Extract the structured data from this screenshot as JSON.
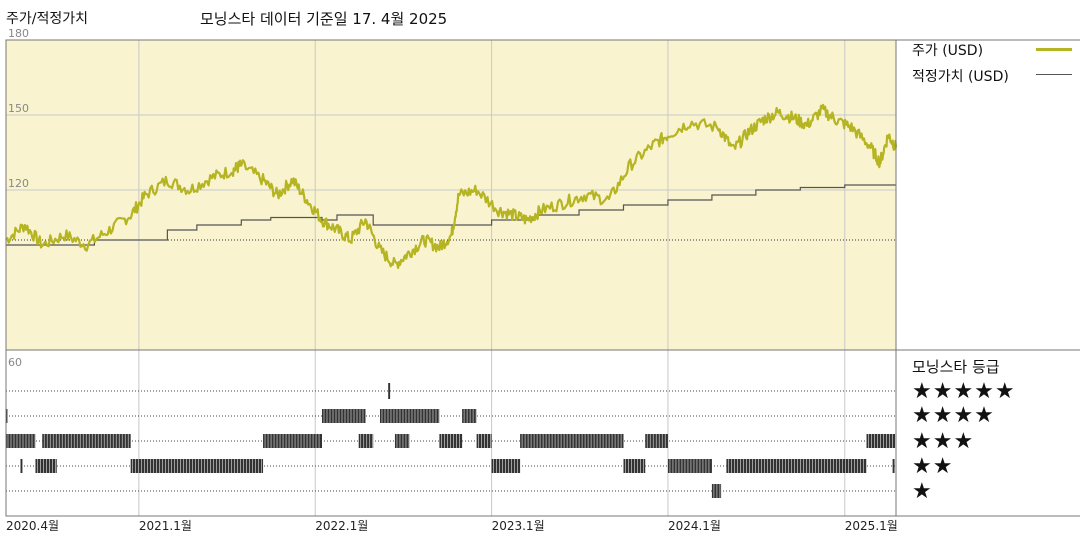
{
  "header": {
    "left_title": "주가/적정가치",
    "subtitle": "모닝스타 데이터 기준일 17. 4월 2025"
  },
  "legend": {
    "price": {
      "label": "주가 (USD)",
      "color": "#b5b422"
    },
    "fair": {
      "label": "적정가치 (USD)",
      "color": "#555555"
    },
    "rating_title": "모닝스타 등급",
    "stars": [
      "★★★★★",
      "★★★★",
      "★★★",
      "★★",
      "★"
    ]
  },
  "colors": {
    "panel_bg": "#f9f4cf",
    "grid": "#c8c8c8"
  },
  "chart_data": [
    {
      "type": "line",
      "yticks": [
        180,
        150,
        120
      ],
      "ylim": [
        56,
        180
      ],
      "x_ticks": [
        "2020.4월",
        "2021.1월",
        "2022.1월",
        "2023.1월",
        "2024.1월",
        "2025.1월"
      ],
      "x_tick_dates": [
        "2020-04",
        "2021-01",
        "2022-01",
        "2023-01",
        "2024-01",
        "2025-01"
      ],
      "xlim": [
        "2020-04-01",
        "2025-04-17"
      ],
      "series": [
        {
          "name": "주가 (USD)",
          "color": "#b5b422",
          "points": [
            [
              "2020-04-01",
              100
            ],
            [
              "2020-05-10",
              106
            ],
            [
              "2020-06-15",
              98
            ],
            [
              "2020-08-01",
              102
            ],
            [
              "2020-09-15",
              98
            ],
            [
              "2020-11-01",
              104
            ],
            [
              "2020-12-15",
              110
            ],
            [
              "2021-01-15",
              118
            ],
            [
              "2021-03-01",
              124
            ],
            [
              "2021-04-15",
              120
            ],
            [
              "2021-06-01",
              125
            ],
            [
              "2021-07-15",
              128
            ],
            [
              "2021-08-01",
              130
            ],
            [
              "2021-09-15",
              124
            ],
            [
              "2021-10-15",
              118
            ],
            [
              "2021-11-15",
              124
            ],
            [
              "2021-12-15",
              116
            ],
            [
              "2022-01-15",
              108
            ],
            [
              "2022-02-15",
              104
            ],
            [
              "2022-03-15",
              100
            ],
            [
              "2022-04-15",
              108
            ],
            [
              "2022-05-15",
              96
            ],
            [
              "2022-06-15",
              90
            ],
            [
              "2022-07-15",
              95
            ],
            [
              "2022-08-15",
              100
            ],
            [
              "2022-09-15",
              97
            ],
            [
              "2022-10-10",
              102
            ],
            [
              "2022-10-25",
              118
            ],
            [
              "2022-12-01",
              120
            ],
            [
              "2023-01-15",
              112
            ],
            [
              "2023-02-15",
              110
            ],
            [
              "2023-03-15",
              108
            ],
            [
              "2023-04-15",
              112
            ],
            [
              "2023-06-01",
              115
            ],
            [
              "2023-07-15",
              118
            ],
            [
              "2023-09-01",
              116
            ],
            [
              "2023-10-15",
              130
            ],
            [
              "2023-12-01",
              138
            ],
            [
              "2024-01-01",
              142
            ],
            [
              "2024-02-15",
              147
            ],
            [
              "2024-04-15",
              145
            ],
            [
              "2024-05-15",
              136
            ],
            [
              "2024-06-15",
              143
            ],
            [
              "2024-07-15",
              148
            ],
            [
              "2024-08-15",
              151
            ],
            [
              "2024-09-15",
              149
            ],
            [
              "2024-10-15",
              146
            ],
            [
              "2024-11-15",
              152
            ],
            [
              "2024-12-15",
              148
            ],
            [
              "2025-01-15",
              145
            ],
            [
              "2025-02-20",
              138
            ],
            [
              "2025-03-15",
              131
            ],
            [
              "2025-04-01",
              142
            ],
            [
              "2025-04-17",
              137
            ]
          ]
        },
        {
          "name": "적정가치 (USD)",
          "color": "#555555",
          "steps": [
            [
              "2020-04-01",
              98
            ],
            [
              "2020-10-01",
              100
            ],
            [
              "2021-03-01",
              104
            ],
            [
              "2021-05-01",
              106
            ],
            [
              "2021-08-01",
              108
            ],
            [
              "2021-10-01",
              109
            ],
            [
              "2022-01-15",
              108
            ],
            [
              "2022-02-15",
              110
            ],
            [
              "2022-05-01",
              106
            ],
            [
              "2023-01-01",
              108
            ],
            [
              "2023-04-01",
              110
            ],
            [
              "2023-07-01",
              112
            ],
            [
              "2023-10-01",
              114
            ],
            [
              "2024-01-01",
              116
            ],
            [
              "2024-04-01",
              118
            ],
            [
              "2024-07-01",
              120
            ],
            [
              "2024-10-01",
              121
            ],
            [
              "2025-01-01",
              122
            ],
            [
              "2025-04-17",
              122
            ]
          ]
        }
      ]
    },
    {
      "type": "bar",
      "yticks": [
        60
      ],
      "ylabels": [
        "5",
        "4",
        "3",
        "2",
        "1"
      ],
      "series": [
        {
          "name": "모닝스타 등급",
          "segments": [
            {
              "stars": 5,
              "from": "2022-06-01",
              "to": "2022-06-05"
            },
            {
              "stars": 4,
              "from": "2020-04-01",
              "to": "2020-04-04"
            },
            {
              "stars": 4,
              "from": "2022-01-15",
              "to": "2022-04-15"
            },
            {
              "stars": 4,
              "from": "2022-05-15",
              "to": "2022-09-15"
            },
            {
              "stars": 4,
              "from": "2022-11-01",
              "to": "2022-12-01"
            },
            {
              "stars": 3,
              "from": "2020-04-01",
              "to": "2020-06-01"
            },
            {
              "stars": 3,
              "from": "2020-06-15",
              "to": "2020-12-15"
            },
            {
              "stars": 3,
              "from": "2021-09-15",
              "to": "2022-01-15"
            },
            {
              "stars": 3,
              "from": "2022-04-01",
              "to": "2022-05-01"
            },
            {
              "stars": 3,
              "from": "2022-06-15",
              "to": "2022-07-15"
            },
            {
              "stars": 3,
              "from": "2022-09-15",
              "to": "2022-11-01"
            },
            {
              "stars": 3,
              "from": "2022-12-01",
              "to": "2023-01-01"
            },
            {
              "stars": 3,
              "from": "2023-03-01",
              "to": "2023-10-01"
            },
            {
              "stars": 3,
              "from": "2023-11-15",
              "to": "2024-01-01"
            },
            {
              "stars": 3,
              "from": "2025-02-15",
              "to": "2025-04-15"
            },
            {
              "stars": 2,
              "from": "2020-05-01",
              "to": "2020-05-05"
            },
            {
              "stars": 2,
              "from": "2020-06-01",
              "to": "2020-07-15"
            },
            {
              "stars": 2,
              "from": "2020-12-15",
              "to": "2021-09-15"
            },
            {
              "stars": 2,
              "from": "2023-01-01",
              "to": "2023-03-01"
            },
            {
              "stars": 2,
              "from": "2023-10-01",
              "to": "2023-11-15"
            },
            {
              "stars": 2,
              "from": "2024-01-01",
              "to": "2024-04-01"
            },
            {
              "stars": 2,
              "from": "2024-05-01",
              "to": "2025-02-15"
            },
            {
              "stars": 2,
              "from": "2025-04-10",
              "to": "2025-04-14"
            },
            {
              "stars": 1,
              "from": "2024-04-01",
              "to": "2024-04-20"
            }
          ]
        }
      ]
    }
  ]
}
